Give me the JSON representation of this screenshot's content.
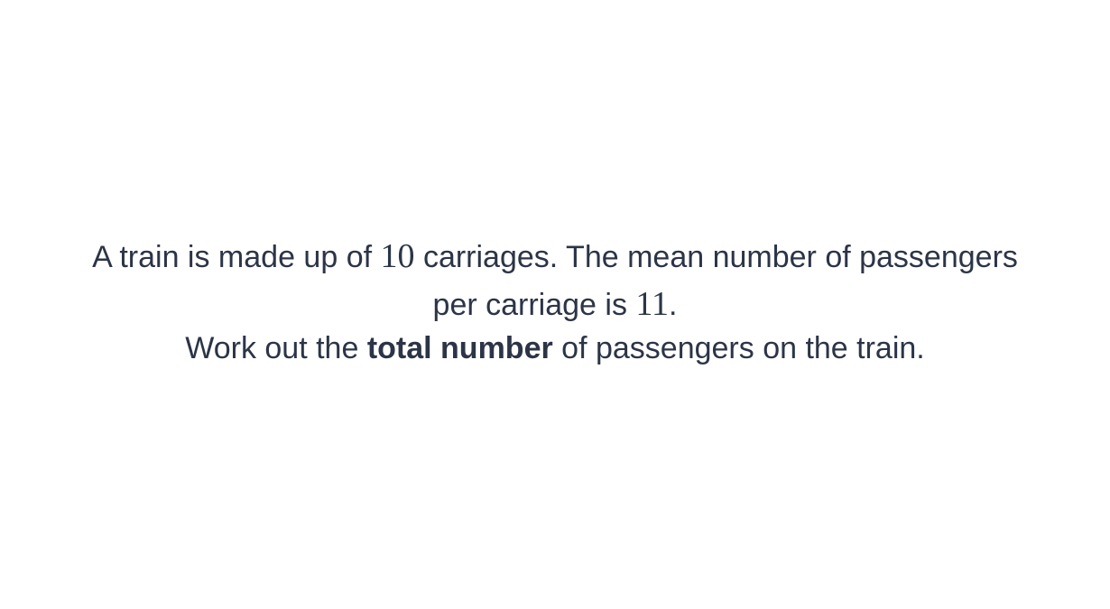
{
  "question": {
    "line1_text_a": "A train is made up of ",
    "carriages": "10",
    "line1_text_b": " carriages. The mean number of passengers",
    "line2_text_a": "per carriage is ",
    "mean": "11",
    "line2_text_b": ".",
    "line3_text_a": "Work out the ",
    "line3_bold": "total number",
    "line3_text_b": " of passengers on the train."
  }
}
